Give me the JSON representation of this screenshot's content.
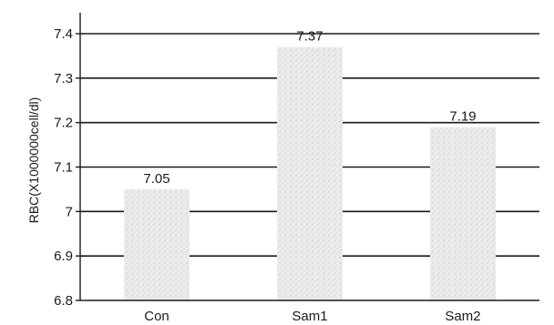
{
  "chart_data": {
    "type": "bar",
    "categories": [
      "Con",
      "Sam1",
      "Sam2"
    ],
    "values": [
      7.05,
      7.37,
      7.19
    ],
    "data_labels": [
      "7.05",
      "7.37",
      "7.19"
    ],
    "title": "",
    "xlabel": "",
    "ylabel": "RBC(X1000000cell/dl)",
    "ylim": [
      6.8,
      7.4
    ],
    "yticks": [
      6.8,
      6.9,
      7.0,
      7.1,
      7.2,
      7.3,
      7.4
    ],
    "ytick_labels": [
      "6.8",
      "6.9",
      "7",
      "7.1",
      "7.2",
      "7.3",
      "7.4"
    ],
    "grid": true,
    "legend": "none",
    "bar_color": "#e6e6e6",
    "grid_color": "#1a1a1a"
  }
}
